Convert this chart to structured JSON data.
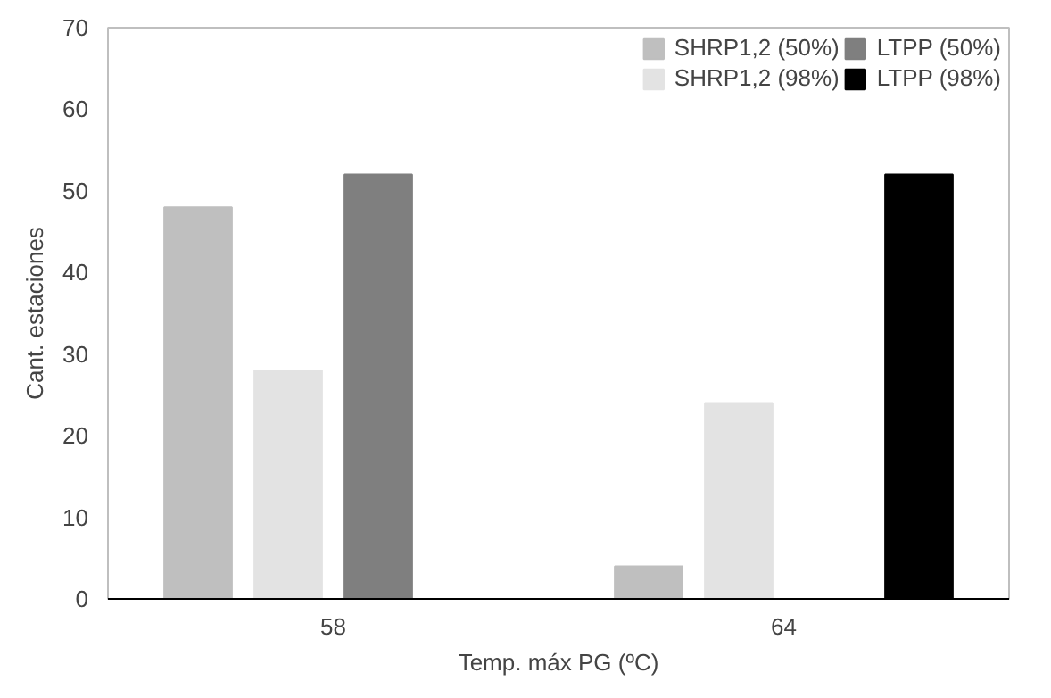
{
  "chart_data": {
    "type": "bar",
    "xlabel": "Temp. máx PG (ºC)",
    "ylabel": "Cant. estaciones",
    "categories": [
      "58",
      "64"
    ],
    "series": [
      {
        "name": "SHRP1,2 (50%)",
        "color": "#bfbfbf",
        "values": [
          48,
          4
        ]
      },
      {
        "name": "SHRP1,2 (98%)",
        "color": "#e3e3e3",
        "values": [
          28,
          24
        ]
      },
      {
        "name": "LTPP (50%)",
        "color": "#7f7f7f",
        "values": [
          52,
          0
        ]
      },
      {
        "name": "LTPP (98%)",
        "color": "#000000",
        "values": [
          0,
          52
        ]
      }
    ],
    "ylim": [
      0,
      70
    ],
    "yticks": [
      0,
      10,
      20,
      30,
      40,
      50,
      60,
      70
    ],
    "grid": false,
    "legend": "top right"
  }
}
